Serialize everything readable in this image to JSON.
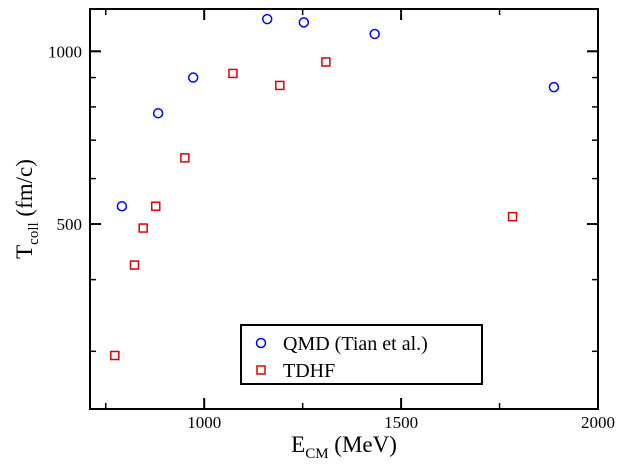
{
  "chart_data": {
    "type": "scatter",
    "xlabel": {
      "main": "E",
      "sub": "CM",
      "unit": " (MeV)"
    },
    "ylabel": {
      "main": "T",
      "sub": "coll",
      "unit": " (fm/c)"
    },
    "xlim": [
      710,
      2000
    ],
    "ylim": [
      238,
      1185
    ],
    "y_scale": "log",
    "grid": false,
    "legend_position": "bottom-center",
    "x_ticks": [
      1000,
      1500,
      2000
    ],
    "x_tick_labels": [
      "1000",
      "1500",
      "2000"
    ],
    "y_ticks": [
      500,
      1000
    ],
    "y_tick_labels": [
      "500",
      "1000"
    ],
    "series": [
      {
        "name": "QMD (Tian et al.)",
        "marker": "circle",
        "color": "#0000ff",
        "x": [
          791,
          883,
          972,
          1160,
          1253,
          1433,
          1888
        ],
        "y": [
          537,
          780,
          900,
          1138,
          1123,
          1072,
          866
        ]
      },
      {
        "name": "TDHF",
        "marker": "square",
        "color": "#dd0000",
        "x": [
          773,
          823,
          845,
          877,
          951,
          1073,
          1192,
          1309,
          1783
        ],
        "y": [
          295,
          424,
          492,
          537,
          652,
          915,
          872,
          958,
          515
        ]
      }
    ]
  }
}
